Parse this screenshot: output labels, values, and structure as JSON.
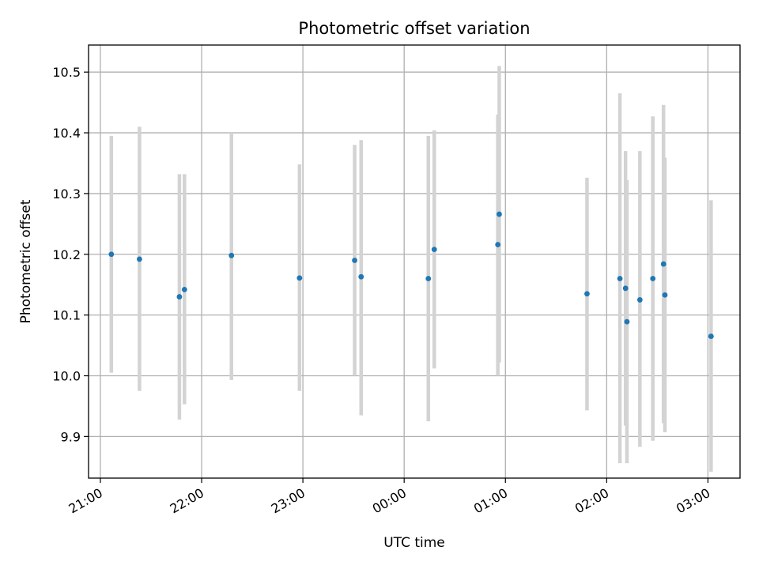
{
  "chart_data": {
    "type": "scatter",
    "title": "Photometric offset variation",
    "xlabel": "UTC time",
    "ylabel": "Photometric offset",
    "grid": true,
    "x_axis": {
      "type": "time",
      "range": [
        "2000-01-01T20:53:00",
        "2000-01-02T03:19:00"
      ],
      "ticks": [
        {
          "value": "2000-01-01T21:00:00",
          "label": "21:00"
        },
        {
          "value": "2000-01-01T22:00:00",
          "label": "22:00"
        },
        {
          "value": "2000-01-01T23:00:00",
          "label": "23:00"
        },
        {
          "value": "2000-01-02T00:00:00",
          "label": "00:00"
        },
        {
          "value": "2000-01-02T01:00:00",
          "label": "01:00"
        },
        {
          "value": "2000-01-02T02:00:00",
          "label": "02:00"
        },
        {
          "value": "2000-01-02T03:00:00",
          "label": "03:00"
        }
      ]
    },
    "y_axis": {
      "range": [
        9.8315,
        10.5445
      ],
      "ticks": [
        9.9,
        10.0,
        10.1,
        10.2,
        10.3,
        10.4,
        10.5
      ],
      "tick_labels": [
        "9.9",
        "10.0",
        "10.1",
        "10.2",
        "10.3",
        "10.4",
        "10.5"
      ]
    },
    "series": [
      {
        "marker_color": "#1f77b4",
        "error_bar_color": "#d3d3d3",
        "points": [
          {
            "x": "2000-01-01T21:06:30",
            "y": 10.2,
            "ylow": 10.005,
            "yhigh": 10.395
          },
          {
            "x": "2000-01-01T21:23:10",
            "y": 10.192,
            "ylow": 9.975,
            "yhigh": 10.41
          },
          {
            "x": "2000-01-01T21:46:50",
            "y": 10.13,
            "ylow": 9.928,
            "yhigh": 10.332
          },
          {
            "x": "2000-01-01T21:49:50",
            "y": 10.142,
            "ylow": 9.953,
            "yhigh": 10.332
          },
          {
            "x": "2000-01-01T22:17:40",
            "y": 10.198,
            "ylow": 9.993,
            "yhigh": 10.4
          },
          {
            "x": "2000-01-01T22:58:00",
            "y": 10.161,
            "ylow": 9.975,
            "yhigh": 10.348
          },
          {
            "x": "2000-01-01T23:30:40",
            "y": 10.19,
            "ylow": 10.0,
            "yhigh": 10.38
          },
          {
            "x": "2000-01-01T23:34:30",
            "y": 10.163,
            "ylow": 9.935,
            "yhigh": 10.388
          },
          {
            "x": "2000-01-02T00:14:20",
            "y": 10.16,
            "ylow": 9.925,
            "yhigh": 10.395
          },
          {
            "x": "2000-01-02T00:17:50",
            "y": 10.208,
            "ylow": 10.012,
            "yhigh": 10.404
          },
          {
            "x": "2000-01-02T00:55:30",
            "y": 10.216,
            "ylow": 10.0,
            "yhigh": 10.43
          },
          {
            "x": "2000-01-02T00:56:20",
            "y": 10.266,
            "ylow": 10.022,
            "yhigh": 10.51
          },
          {
            "x": "2000-01-02T01:48:20",
            "y": 10.135,
            "ylow": 9.943,
            "yhigh": 10.326
          },
          {
            "x": "2000-01-02T02:07:50",
            "y": 10.16,
            "ylow": 9.856,
            "yhigh": 10.465
          },
          {
            "x": "2000-01-02T02:11:10",
            "y": 10.144,
            "ylow": 9.918,
            "yhigh": 10.37
          },
          {
            "x": "2000-01-02T02:12:00",
            "y": 10.089,
            "ylow": 9.856,
            "yhigh": 10.322
          },
          {
            "x": "2000-01-02T02:19:40",
            "y": 10.125,
            "ylow": 9.883,
            "yhigh": 10.37
          },
          {
            "x": "2000-01-02T02:27:20",
            "y": 10.16,
            "ylow": 9.893,
            "yhigh": 10.427
          },
          {
            "x": "2000-01-02T02:33:40",
            "y": 10.184,
            "ylow": 9.922,
            "yhigh": 10.446
          },
          {
            "x": "2000-01-02T02:34:30",
            "y": 10.133,
            "ylow": 9.907,
            "yhigh": 10.359
          },
          {
            "x": "2000-01-02T03:01:50",
            "y": 10.065,
            "ylow": 9.842,
            "yhigh": 10.289
          }
        ]
      }
    ]
  }
}
